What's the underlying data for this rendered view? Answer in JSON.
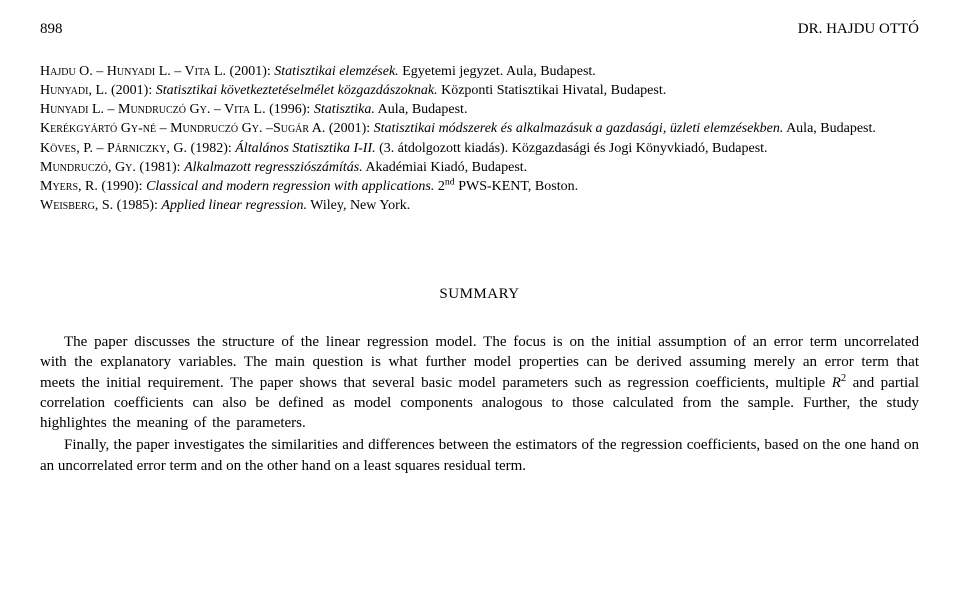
{
  "header": {
    "page_number": "898",
    "author": "DR. HAJDU OTTÓ"
  },
  "references": {
    "r1": {
      "authors": "Hajdu O. – Hunyadi L. – Vita L.",
      "year": "(2001):",
      "title": "Statisztikai elemzések.",
      "rest": "Egyetemi jegyzet. Aula, Budapest."
    },
    "r2": {
      "authors": "Hunyadi, L.",
      "year": "(2001):",
      "title": "Statisztikai következtetéselmélet közgazdászoknak.",
      "rest": "Központi Statisztikai Hivatal, Budapest."
    },
    "r3": {
      "authors": "Hunyadi L. – Mundruczó Gy. – Vita L.",
      "year": "(1996):",
      "title": "Statisztika.",
      "rest": "Aula, Budapest."
    },
    "r4": {
      "authors": "Kerékgyártó Gy-né – Mundruczó Gy. –Sugár A.",
      "year": "(2001):",
      "title": "Statisztikai módszerek és alkalmazásuk a gazdasági, üzleti elemzésekben.",
      "rest": "Aula, Budapest."
    },
    "r5": {
      "authors": "Köves, P. – Párniczky, G.",
      "year": "(1982):",
      "title": "Általános Statisztika I-II.",
      "rest": "(3. átdolgozott kiadás). Közgazdasági és Jogi Könyvkiadó, Budapest."
    },
    "r6": {
      "authors": "Mundruczó, Gy.",
      "year": "(1981):",
      "title": "Alkalmazott regressziószámítás.",
      "rest": "Akadémiai Kiadó, Budapest."
    },
    "r7": {
      "authors": "Myers, R.",
      "year": "(1990):",
      "title": "Classical and modern regression with applications.",
      "rest_a": "2",
      "rest_sup": "nd",
      "rest_b": " PWS-KENT, Boston."
    },
    "r8": {
      "authors": "Weisberg, S.",
      "year": "(1985):",
      "title": "Applied linear regression.",
      "rest": "Wiley, New York."
    }
  },
  "summary": {
    "title": "SUMMARY",
    "p1a": "The paper discusses the structure of the linear regression model. The focus is on the initial assumption of an error term uncorrelated with the explanatory variables. The main question is what further model properties can be derived assuming merely an error term that meets the initial requirement. The paper shows that several basic model parameters such as regression coefficients, multiple ",
    "p1_rvar": "R",
    "p1_sup": "2",
    "p1b": " and partial correlation coefficients can also be defined as model components analogous to those calculated from the sample. Further, the study highlightes the meaning of the parameters.",
    "p2": "Finally, the paper investigates the similarities and differences between the estimators of the regression coefficients, based on the one hand on an uncorrelated error term and on the other hand on a least squares residual term."
  }
}
